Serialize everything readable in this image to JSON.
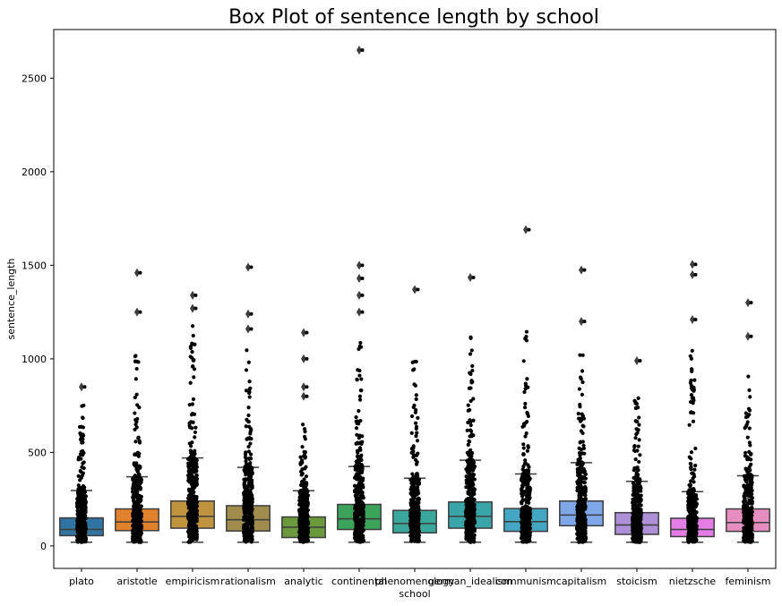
{
  "chart_data": {
    "type": "box",
    "title": "Box Plot of sentence length by school",
    "xlabel": "school",
    "ylabel": "sentence_length",
    "ylim": [
      -120,
      2760
    ],
    "yticks": [
      0,
      500,
      1000,
      1500,
      2000,
      2500
    ],
    "grid": false,
    "legend": "none",
    "categories": [
      "plato",
      "aristotle",
      "empiricism",
      "rationalism",
      "analytic",
      "continental",
      "phenomenology",
      "german_idealism",
      "communism",
      "capitalism",
      "stoicism",
      "nietzsche",
      "feminism"
    ],
    "colors": [
      "#3274a1",
      "#e1812c",
      "#c0943f",
      "#a08c4c",
      "#6b9a3c",
      "#3ba35a",
      "#39a79c",
      "#3aa5a8",
      "#43a6c2",
      "#7fa6e6",
      "#ad90d8",
      "#e47de6",
      "#e68ec0"
    ],
    "boxes": [
      {
        "min": 20,
        "q1": 55,
        "median": 88,
        "q3": 150,
        "whisker_high": 296,
        "max_scatter": 790,
        "outliers": [
          850
        ]
      },
      {
        "min": 20,
        "q1": 82,
        "median": 128,
        "q3": 198,
        "whisker_high": 370,
        "max_scatter": 1100,
        "outliers": [
          1250,
          1460
        ]
      },
      {
        "min": 20,
        "q1": 95,
        "median": 158,
        "q3": 240,
        "whisker_high": 470,
        "max_scatter": 1220,
        "outliers": [
          1270,
          1340
        ]
      },
      {
        "min": 20,
        "q1": 80,
        "median": 140,
        "q3": 215,
        "whisker_high": 420,
        "max_scatter": 1050,
        "outliers": [
          1160,
          1240,
          1490
        ]
      },
      {
        "min": 20,
        "q1": 45,
        "median": 100,
        "q3": 155,
        "whisker_high": 295,
        "max_scatter": 660,
        "outliers": [
          800,
          850,
          1000,
          1140
        ]
      },
      {
        "min": 20,
        "q1": 88,
        "median": 145,
        "q3": 222,
        "whisker_high": 425,
        "max_scatter": 1160,
        "outliers": [
          1250,
          1340,
          1430,
          1500,
          2650
        ]
      },
      {
        "min": 20,
        "q1": 70,
        "median": 120,
        "q3": 190,
        "whisker_high": 362,
        "max_scatter": 1030,
        "outliers": [
          1370
        ]
      },
      {
        "min": 20,
        "q1": 95,
        "median": 158,
        "q3": 235,
        "whisker_high": 458,
        "max_scatter": 1120,
        "outliers": [
          1435
        ]
      },
      {
        "min": 20,
        "q1": 78,
        "median": 130,
        "q3": 200,
        "whisker_high": 385,
        "max_scatter": 1150,
        "outliers": [
          1690
        ]
      },
      {
        "min": 20,
        "q1": 108,
        "median": 165,
        "q3": 240,
        "whisker_high": 445,
        "max_scatter": 1050,
        "outliers": [
          1200,
          1475
        ]
      },
      {
        "min": 20,
        "q1": 62,
        "median": 112,
        "q3": 178,
        "whisker_high": 345,
        "max_scatter": 800,
        "outliers": [
          990
        ]
      },
      {
        "min": 20,
        "q1": 50,
        "median": 88,
        "q3": 148,
        "whisker_high": 290,
        "max_scatter": 1080,
        "outliers": [
          1210,
          1450,
          1505
        ]
      },
      {
        "min": 20,
        "q1": 78,
        "median": 125,
        "q3": 198,
        "whisker_high": 375,
        "max_scatter": 910,
        "outliers": [
          1120,
          1300
        ]
      }
    ]
  }
}
